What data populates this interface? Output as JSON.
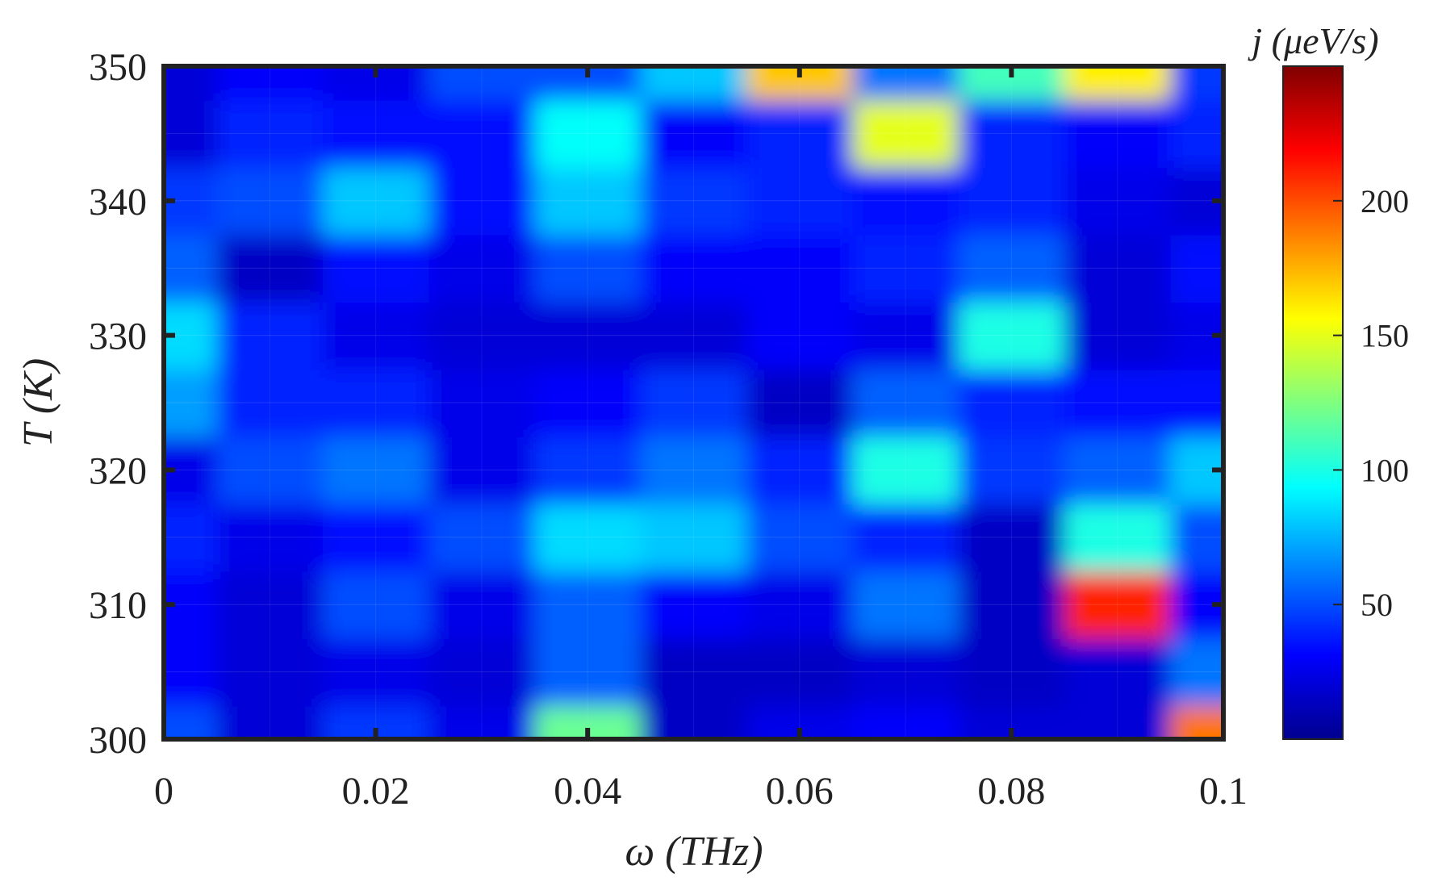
{
  "chart_data": {
    "type": "heatmap",
    "xlabel": "ω (THz)",
    "ylabel": "T (K)",
    "colorbar_label": "j (μeV/s)",
    "colormap": "jet",
    "x": [
      0,
      0.01,
      0.02,
      0.03,
      0.04,
      0.05,
      0.06,
      0.07,
      0.08,
      0.09,
      0.1
    ],
    "y": [
      300,
      305,
      310,
      315,
      320,
      325,
      330,
      335,
      340,
      345,
      350
    ],
    "z": [
      [
        50,
        20,
        45,
        25,
        120,
        15,
        25,
        30,
        20,
        20,
        190
      ],
      [
        30,
        20,
        25,
        20,
        55,
        15,
        15,
        20,
        15,
        20,
        60
      ],
      [
        30,
        20,
        50,
        25,
        55,
        30,
        25,
        60,
        15,
        210,
        30
      ],
      [
        40,
        25,
        35,
        50,
        85,
        80,
        50,
        40,
        15,
        100,
        50
      ],
      [
        25,
        50,
        60,
        25,
        45,
        60,
        40,
        100,
        45,
        55,
        80
      ],
      [
        70,
        40,
        40,
        25,
        30,
        45,
        15,
        55,
        40,
        35,
        35
      ],
      [
        85,
        40,
        25,
        20,
        20,
        20,
        30,
        25,
        100,
        20,
        25
      ],
      [
        55,
        15,
        35,
        25,
        50,
        30,
        30,
        40,
        55,
        20,
        35
      ],
      [
        45,
        50,
        80,
        35,
        80,
        45,
        40,
        35,
        40,
        25,
        20
      ],
      [
        20,
        40,
        35,
        35,
        95,
        30,
        40,
        150,
        40,
        30,
        40
      ],
      [
        20,
        30,
        25,
        50,
        50,
        80,
        170,
        60,
        110,
        160,
        45
      ]
    ],
    "xlim": [
      0,
      0.1
    ],
    "ylim": [
      300,
      350
    ],
    "x_ticks": [
      "0",
      "0.02",
      "0.04",
      "0.06",
      "0.08",
      "0.1"
    ],
    "y_ticks": [
      "300",
      "310",
      "320",
      "330",
      "340",
      "350"
    ],
    "colorbar_range": [
      0,
      250
    ],
    "colorbar_ticks": [
      "50",
      "100",
      "150",
      "200"
    ]
  }
}
